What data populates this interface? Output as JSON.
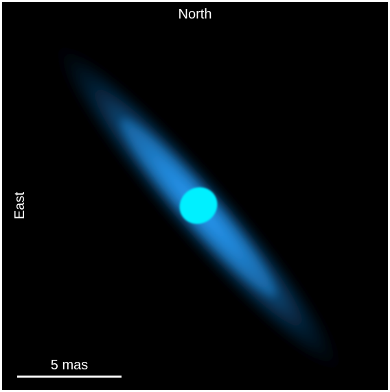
{
  "image": {
    "background_color": "#000000",
    "disk_color": "#1a8fe8",
    "core_color": "#00f0ff",
    "scale_bar_color": "#ffffff"
  },
  "labels": {
    "north": "North",
    "east": "East",
    "scale": "5 mas"
  }
}
